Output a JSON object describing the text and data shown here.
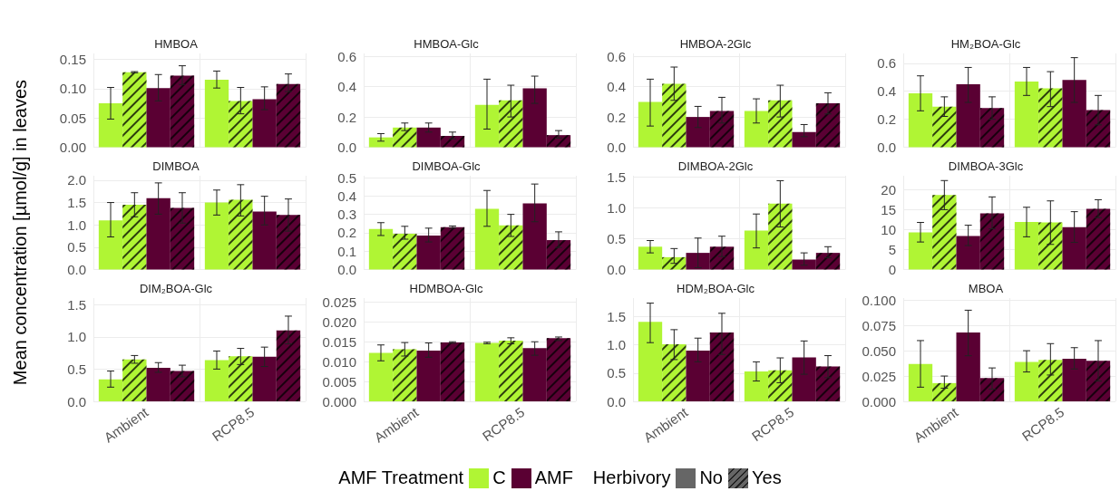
{
  "chart_data": [
    {
      "type": "bar",
      "title": "HMBOA",
      "ylabel": "Mean concentration [µmol/g] in leaves",
      "legend_title": "AMF Treatment",
      "legend": "bottom",
      "annotations": [
        "Herbivory",
        "No",
        "Yes"
      ],
      "categories": [
        null,
        null
      ],
      "ylim": [
        0,
        0.16
      ],
      "yticks": [
        {
          "value": 0,
          "label": "0.00"
        },
        {
          "value": 0.05,
          "label": "0.05"
        },
        {
          "value": 0.1,
          "label": "0.10"
        },
        {
          "value": 0.15,
          "label": "0.15"
        }
      ],
      "grid": true,
      "tick_labels": "y",
      "series": [
        {
          "name": "C",
          "color": "#b0f534",
          "values": [
            0.075,
            0.115
          ],
          "errors": [
            [
              0.048,
              0.102
            ],
            [
              0.101,
              0.13
            ]
          ]
        },
        {
          "color": "#b0f534",
          "line_style": "dashed",
          "values": [
            0.128,
            0.079
          ],
          "errors": [
            [
              0.127,
              0.129
            ],
            [
              0.057,
              0.102
            ]
          ]
        },
        {
          "name": "AMF",
          "color": "#5a0033",
          "values": [
            0.101,
            0.082
          ],
          "errors": [
            [
              0.079,
              0.124
            ],
            [
              0.064,
              0.103
            ]
          ]
        },
        {
          "color": "#5a0033",
          "line_style": "dashed",
          "values": [
            0.122,
            0.108
          ],
          "errors": [
            [
              0.107,
              0.139
            ],
            [
              0.095,
              0.125
            ]
          ]
        }
      ]
    },
    {
      "type": "bar",
      "title": "HMBOA-Glc",
      "categories": [
        null,
        null
      ],
      "ylim": [
        0,
        0.62
      ],
      "yticks": [
        {
          "value": 0,
          "label": "0.0"
        },
        {
          "value": 0.2,
          "label": "0.2"
        },
        {
          "value": 0.4,
          "label": "0.4"
        },
        {
          "value": 0.6,
          "label": "0.6"
        }
      ],
      "grid": true,
      "tick_labels": "y",
      "series": [
        {
          "color": "#b0f534",
          "values": [
            0.065,
            0.28
          ],
          "errors": [
            [
              0.04,
              0.09
            ],
            [
              0.12,
              0.45
            ]
          ]
        },
        {
          "color": "#b0f534",
          "line_style": "dashed",
          "values": [
            0.13,
            0.31
          ],
          "errors": [
            [
              0.11,
              0.16
            ],
            [
              0.2,
              0.41
            ]
          ]
        },
        {
          "color": "#5a0033",
          "values": [
            0.13,
            0.39
          ],
          "errors": [
            [
              0.1,
              0.16
            ],
            [
              0.29,
              0.47
            ]
          ]
        },
        {
          "color": "#5a0033",
          "line_style": "dashed",
          "values": [
            0.075,
            0.08
          ],
          "errors": [
            [
              0.055,
              0.1
            ],
            [
              0.06,
              0.11
            ]
          ]
        }
      ]
    },
    {
      "type": "bar",
      "title": "HMBOA-2Glc",
      "categories": [
        null,
        null
      ],
      "ylim": [
        0,
        0.62
      ],
      "yticks": [
        {
          "value": 0,
          "label": "0.0"
        },
        {
          "value": 0.2,
          "label": "0.2"
        },
        {
          "value": 0.4,
          "label": "0.4"
        },
        {
          "value": 0.6,
          "label": "0.6"
        }
      ],
      "grid": true,
      "tick_labels": "y",
      "series": [
        {
          "color": "#b0f534",
          "values": [
            0.3,
            0.24
          ],
          "errors": [
            [
              0.14,
              0.45
            ],
            [
              0.16,
              0.32
            ]
          ]
        },
        {
          "color": "#b0f534",
          "line_style": "dashed",
          "values": [
            0.42,
            0.31
          ],
          "errors": [
            [
              0.31,
              0.53
            ],
            [
              0.2,
              0.41
            ]
          ]
        },
        {
          "color": "#5a0033",
          "values": [
            0.2,
            0.1
          ],
          "errors": [
            [
              0.13,
              0.27
            ],
            [
              0.07,
              0.15
            ]
          ]
        },
        {
          "color": "#5a0033",
          "line_style": "dashed",
          "values": [
            0.24,
            0.29
          ],
          "errors": [
            [
              0.16,
              0.33
            ],
            [
              0.22,
              0.36
            ]
          ]
        }
      ]
    },
    {
      "type": "bar",
      "title": "HM₂BOA-Glc",
      "categories": [
        null,
        null
      ],
      "ylim": [
        0,
        0.67
      ],
      "yticks": [
        {
          "value": 0,
          "label": "0.0"
        },
        {
          "value": 0.2,
          "label": "0.2"
        },
        {
          "value": 0.4,
          "label": "0.4"
        },
        {
          "value": 0.6,
          "label": "0.6"
        }
      ],
      "grid": true,
      "tick_labels": "y",
      "series": [
        {
          "color": "#b0f534",
          "values": [
            0.385,
            0.47
          ],
          "errors": [
            [
              0.26,
              0.51
            ],
            [
              0.37,
              0.57
            ]
          ]
        },
        {
          "color": "#b0f534",
          "line_style": "dashed",
          "values": [
            0.29,
            0.42
          ],
          "errors": [
            [
              0.22,
              0.36
            ],
            [
              0.29,
              0.54
            ]
          ]
        },
        {
          "color": "#5a0033",
          "values": [
            0.45,
            0.48
          ],
          "errors": [
            [
              0.32,
              0.57
            ],
            [
              0.32,
              0.64
            ]
          ]
        },
        {
          "color": "#5a0033",
          "line_style": "dashed",
          "values": [
            0.28,
            0.265
          ],
          "errors": [
            [
              0.2,
              0.36
            ],
            [
              0.16,
              0.37
            ]
          ]
        }
      ]
    },
    {
      "type": "bar",
      "title": "DIMBOA",
      "categories": [
        null,
        null
      ],
      "ylim": [
        0,
        2.1
      ],
      "yticks": [
        {
          "value": 0,
          "label": "0.0"
        },
        {
          "value": 0.5,
          "label": "0.5"
        },
        {
          "value": 1,
          "label": "1.0"
        },
        {
          "value": 1.5,
          "label": "1.5"
        },
        {
          "value": 2,
          "label": "2.0"
        }
      ],
      "grid": true,
      "tick_labels": "y",
      "series": [
        {
          "color": "#b0f534",
          "values": [
            1.1,
            1.5
          ],
          "errors": [
            [
              0.73,
              1.5
            ],
            [
              1.22,
              1.78
            ]
          ]
        },
        {
          "color": "#b0f534",
          "line_style": "dashed",
          "values": [
            1.45,
            1.56
          ],
          "errors": [
            [
              1.18,
              1.72
            ],
            [
              1.2,
              1.9
            ]
          ]
        },
        {
          "color": "#5a0033",
          "values": [
            1.6,
            1.3
          ],
          "errors": [
            [
              1.24,
              1.94
            ],
            [
              1.0,
              1.64
            ]
          ]
        },
        {
          "color": "#5a0033",
          "line_style": "dashed",
          "values": [
            1.38,
            1.22
          ],
          "errors": [
            [
              1.04,
              1.72
            ],
            [
              0.86,
              1.58
            ]
          ]
        }
      ]
    },
    {
      "type": "bar",
      "title": "DIMBOA-Glc",
      "categories": [
        null,
        null
      ],
      "ylim": [
        0,
        0.51
      ],
      "yticks": [
        {
          "value": 0,
          "label": "0.0"
        },
        {
          "value": 0.1,
          "label": "0.1"
        },
        {
          "value": 0.2,
          "label": "0.2"
        },
        {
          "value": 0.3,
          "label": "0.3"
        },
        {
          "value": 0.4,
          "label": "0.4"
        },
        {
          "value": 0.5,
          "label": "0.5"
        }
      ],
      "grid": true,
      "tick_labels": "y",
      "series": [
        {
          "color": "#b0f534",
          "values": [
            0.22,
            0.33
          ],
          "errors": [
            [
              0.185,
              0.255
            ],
            [
              0.235,
              0.43
            ]
          ]
        },
        {
          "color": "#b0f534",
          "line_style": "dashed",
          "values": [
            0.195,
            0.24
          ],
          "errors": [
            [
              0.165,
              0.235
            ],
            [
              0.18,
              0.3
            ]
          ]
        },
        {
          "color": "#5a0033",
          "values": [
            0.185,
            0.36
          ],
          "errors": [
            [
              0.15,
              0.225
            ],
            [
              0.26,
              0.465
            ]
          ]
        },
        {
          "color": "#5a0033",
          "line_style": "dashed",
          "values": [
            0.23,
            0.16
          ],
          "errors": [
            [
              0.225,
              0.237
            ],
            [
              0.12,
              0.205
            ]
          ]
        }
      ]
    },
    {
      "type": "bar",
      "title": "DIMBOA-2Glc",
      "categories": [
        null,
        null
      ],
      "ylim": [
        0,
        1.52
      ],
      "yticks": [
        {
          "value": 0,
          "label": "0.0"
        },
        {
          "value": 0.5,
          "label": "0.5"
        },
        {
          "value": 1,
          "label": "1.0"
        },
        {
          "value": 1.5,
          "label": "1.5"
        }
      ],
      "grid": true,
      "tick_labels": "y",
      "series": [
        {
          "color": "#b0f534",
          "values": [
            0.37,
            0.63
          ],
          "errors": [
            [
              0.27,
              0.47
            ],
            [
              0.35,
              0.9
            ]
          ]
        },
        {
          "color": "#b0f534",
          "line_style": "dashed",
          "values": [
            0.2,
            1.07
          ],
          "errors": [
            [
              0.1,
              0.34
            ],
            [
              0.69,
              1.44
            ]
          ]
        },
        {
          "color": "#5a0033",
          "values": [
            0.27,
            0.16
          ],
          "errors": [
            [
              0.03,
              0.51
            ],
            [
              0.07,
              0.27
            ]
          ]
        },
        {
          "color": "#5a0033",
          "line_style": "dashed",
          "values": [
            0.37,
            0.27
          ],
          "errors": [
            [
              0.21,
              0.54
            ],
            [
              0.19,
              0.37
            ]
          ]
        }
      ]
    },
    {
      "type": "bar",
      "title": "DIMBOA-3Glc",
      "categories": [
        null,
        null
      ],
      "ylim": [
        0,
        23.5
      ],
      "yticks": [
        0,
        5,
        10,
        15,
        20
      ],
      "grid": true,
      "tick_labels": "y",
      "series": [
        {
          "color": "#b0f534",
          "values": [
            9.3,
            11.9
          ],
          "errors": [
            [
              6.9,
              11.8
            ],
            [
              8.2,
              15.6
            ]
          ]
        },
        {
          "color": "#b0f534",
          "line_style": "dashed",
          "values": [
            18.7,
            11.8
          ],
          "errors": [
            [
              15,
              22.3
            ],
            [
              6.3,
              17.2
            ]
          ]
        },
        {
          "color": "#5a0033",
          "values": [
            8.4,
            10.6
          ],
          "errors": [
            [
              6,
              11.1
            ],
            [
              6.8,
              14.5
            ]
          ]
        },
        {
          "color": "#5a0033",
          "line_style": "dashed",
          "values": [
            14.1,
            15.2
          ],
          "errors": [
            [
              10.2,
              18.2
            ],
            [
              13,
              17.5
            ]
          ]
        }
      ]
    },
    {
      "type": "bar",
      "title": "DIM₂BOA-Glc",
      "categories": [
        "Ambient",
        "RCP8.5"
      ],
      "ylim": [
        0,
        1.6
      ],
      "yticks": [
        {
          "value": 0,
          "label": "0.0"
        },
        {
          "value": 0.5,
          "label": "0.5"
        },
        {
          "value": 1,
          "label": "1.0"
        },
        {
          "value": 1.5,
          "label": "1.5"
        }
      ],
      "grid": true,
      "series": [
        {
          "color": "#b0f534",
          "values": [
            0.34,
            0.64
          ],
          "errors": [
            [
              0.22,
              0.47
            ],
            [
              0.5,
              0.78
            ]
          ]
        },
        {
          "color": "#b0f534",
          "line_style": "dashed",
          "values": [
            0.65,
            0.7
          ],
          "errors": [
            [
              0.59,
              0.71
            ],
            [
              0.57,
              0.82
            ]
          ]
        },
        {
          "color": "#5a0033",
          "values": [
            0.52,
            0.69
          ],
          "errors": [
            [
              0.45,
              0.6
            ],
            [
              0.54,
              0.84
            ]
          ]
        },
        {
          "color": "#5a0033",
          "line_style": "dashed",
          "values": [
            0.47,
            1.1
          ],
          "errors": [
            [
              0.38,
              0.56
            ],
            [
              0.89,
              1.32
            ]
          ]
        }
      ]
    },
    {
      "type": "bar",
      "title": "HDMBOA-Glc",
      "categories": [
        "Ambient",
        "RCP8.5"
      ],
      "ylim": [
        0,
        0.026
      ],
      "yticks": [
        {
          "value": 0,
          "label": "0.000"
        },
        {
          "value": 0.005,
          "label": "0.005"
        },
        {
          "value": 0.01,
          "label": "0.010"
        },
        {
          "value": 0.015,
          "label": "0.015"
        },
        {
          "value": 0.02,
          "label": "0.020"
        },
        {
          "value": 0.025,
          "label": "0.025"
        }
      ],
      "grid": true,
      "series": [
        {
          "color": "#b0f534",
          "values": [
            0.0122,
            0.0147
          ],
          "errors": [
            [
              0.0102,
              0.0142
            ],
            [
              0.0145,
              0.0149
            ]
          ]
        },
        {
          "color": "#b0f534",
          "line_style": "dashed",
          "values": [
            0.0131,
            0.0153
          ],
          "errors": [
            [
              0.0114,
              0.0148
            ],
            [
              0.0145,
              0.016
            ]
          ]
        },
        {
          "color": "#5a0033",
          "values": [
            0.0128,
            0.0134
          ],
          "errors": [
            [
              0.0111,
              0.0147
            ],
            [
              0.0116,
              0.015
            ]
          ]
        },
        {
          "color": "#5a0033",
          "line_style": "dashed",
          "values": [
            0.0148,
            0.0159
          ],
          "errors": [
            [
              0.0146,
              0.015
            ],
            [
              0.0153,
              0.0162
            ]
          ]
        }
      ]
    },
    {
      "type": "bar",
      "title": "HDM₂BOA-Glc",
      "categories": [
        "Ambient",
        "RCP8.5"
      ],
      "ylim": [
        0,
        1.83
      ],
      "yticks": [
        {
          "value": 0,
          "label": "0.0"
        },
        {
          "value": 0.5,
          "label": "0.5"
        },
        {
          "value": 1,
          "label": "1.0"
        },
        {
          "value": 1.5,
          "label": "1.5"
        }
      ],
      "grid": true,
      "series": [
        {
          "color": "#b0f534",
          "values": [
            1.41,
            0.53
          ],
          "errors": [
            [
              1.04,
              1.74
            ],
            [
              0.36,
              0.7
            ]
          ]
        },
        {
          "color": "#b0f534",
          "line_style": "dashed",
          "values": [
            1.01,
            0.55
          ],
          "errors": [
            [
              0.74,
              1.27
            ],
            [
              0.33,
              0.77
            ]
          ]
        },
        {
          "color": "#5a0033",
          "values": [
            0.9,
            0.78
          ],
          "errors": [
            [
              0.7,
              1.12
            ],
            [
              0.48,
              1.07
            ]
          ]
        },
        {
          "color": "#5a0033",
          "line_style": "dashed",
          "values": [
            1.22,
            0.62
          ],
          "errors": [
            [
              0.83,
              1.56
            ],
            [
              0.42,
              0.81
            ]
          ]
        }
      ]
    },
    {
      "type": "bar",
      "title": "MBOA",
      "categories": [
        "Ambient",
        "RCP8.5"
      ],
      "ylim": [
        0,
        0.102
      ],
      "yticks": [
        {
          "value": 0,
          "label": "0.000"
        },
        {
          "value": 0.025,
          "label": "0.025"
        },
        {
          "value": 0.05,
          "label": "0.050"
        },
        {
          "value": 0.075,
          "label": "0.075"
        },
        {
          "value": 0.1,
          "label": "0.100"
        }
      ],
      "grid": true,
      "series": [
        {
          "color": "#b0f534",
          "values": [
            0.037,
            0.039
          ],
          "errors": [
            [
              0.014,
              0.06
            ],
            [
              0.029,
              0.05
            ]
          ]
        },
        {
          "color": "#b0f534",
          "line_style": "dashed",
          "values": [
            0.018,
            0.041
          ],
          "errors": [
            [
              0.013,
              0.025
            ],
            [
              0.026,
              0.057
            ]
          ]
        },
        {
          "color": "#5a0033",
          "values": [
            0.068,
            0.042
          ],
          "errors": [
            [
              0.045,
              0.09
            ],
            [
              0.032,
              0.053
            ]
          ]
        },
        {
          "color": "#5a0033",
          "line_style": "dashed",
          "values": [
            0.023,
            0.04
          ],
          "errors": [
            [
              0.012,
              0.033
            ],
            [
              0.02,
              0.06
            ]
          ]
        }
      ]
    }
  ]
}
